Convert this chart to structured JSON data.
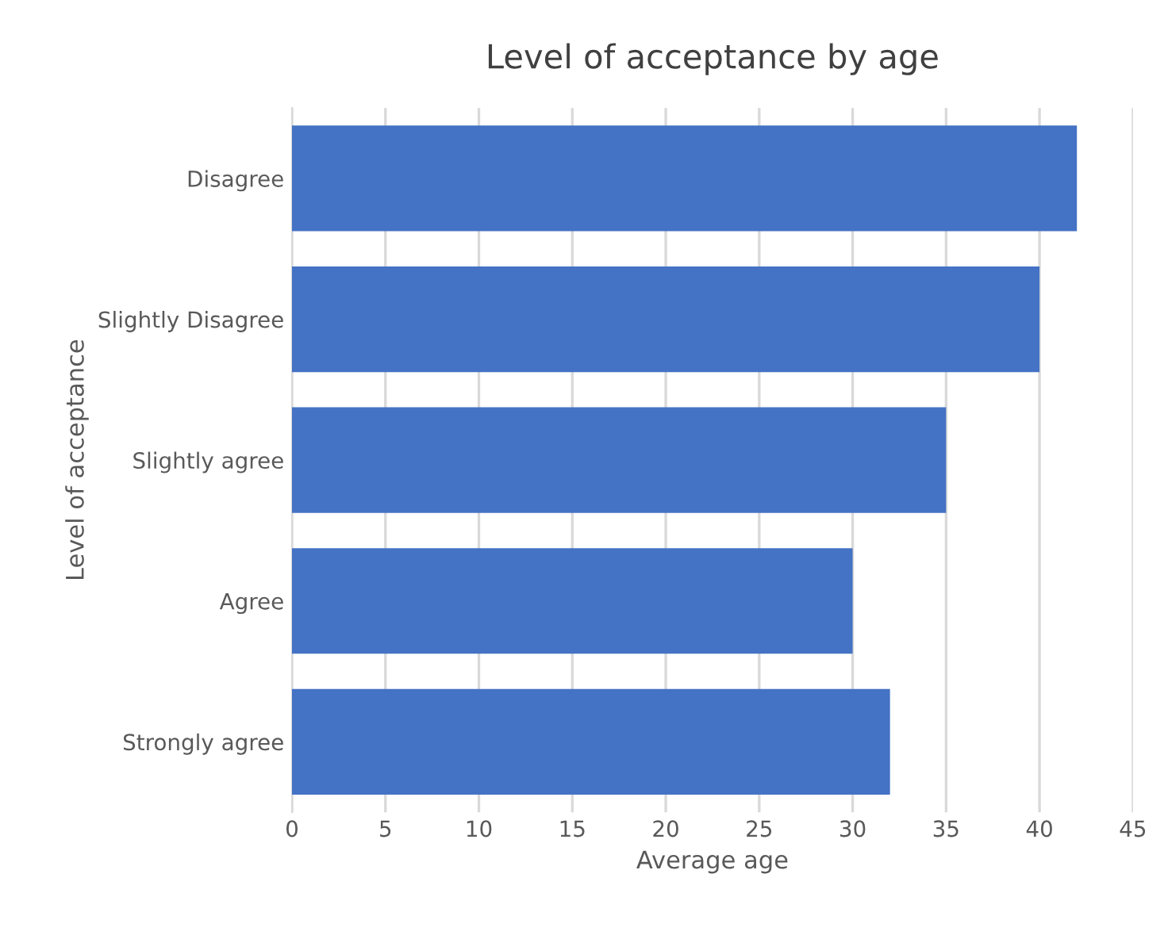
{
  "chart_data": {
    "type": "bar",
    "orientation": "horizontal",
    "title": "Level of acceptance by age",
    "xlabel": "Average age",
    "ylabel": "Level of acceptance",
    "categories": [
      "Disagree",
      "Slightly Disagree",
      "Slightly agree",
      "Agree",
      "Strongly agree"
    ],
    "values": [
      42,
      40,
      35,
      30,
      32
    ],
    "color": "#4472c4",
    "xlim": [
      0,
      45
    ],
    "xticks": [
      0,
      5,
      10,
      15,
      20,
      25,
      30,
      35,
      40,
      45
    ],
    "grid": "x"
  }
}
